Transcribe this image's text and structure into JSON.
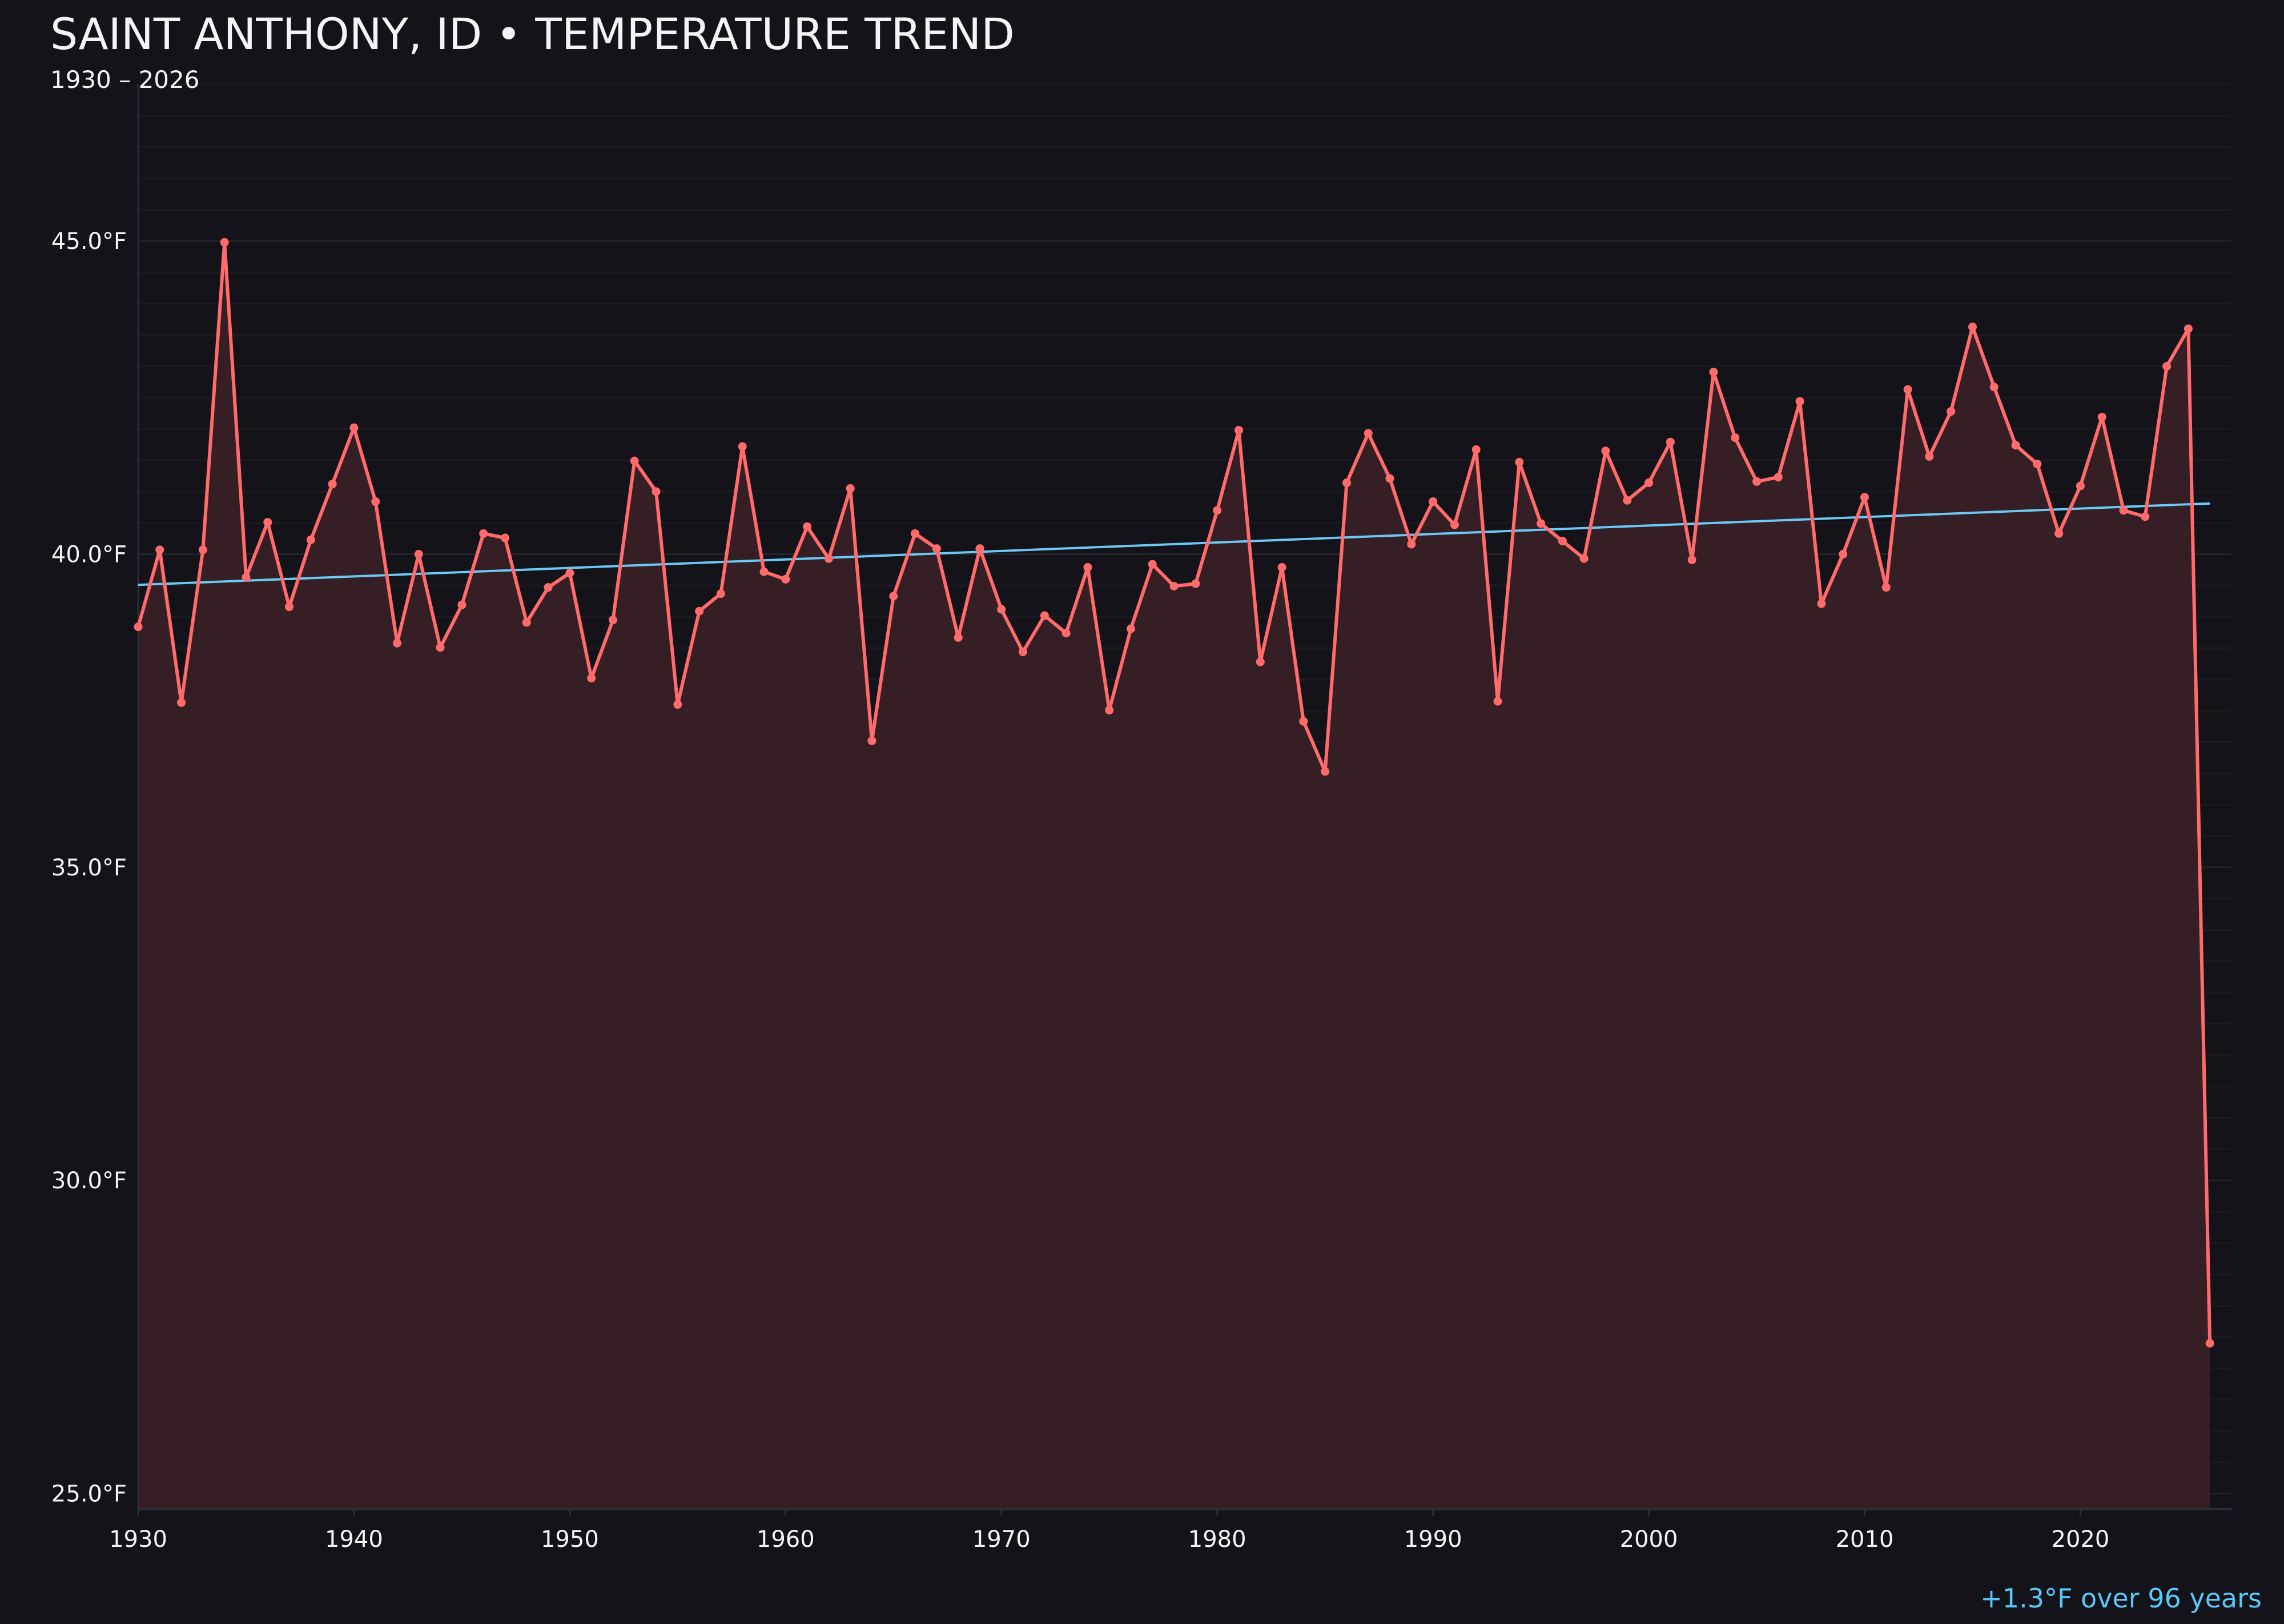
{
  "chart_data": {
    "type": "line",
    "title": "SAINT ANTHONY, ID • TEMPERATURE TREND",
    "subtitle": "1930 – 2026",
    "xlabel": "",
    "ylabel": "",
    "xlim": [
      1930,
      2027
    ],
    "ylim": [
      24.75,
      47.5
    ],
    "grid": true,
    "x_ticks": [
      "1930",
      "1940",
      "1950",
      "1960",
      "1970",
      "1980",
      "1990",
      "2000",
      "2010",
      "2020"
    ],
    "y_ticks": [
      "25.0°F",
      "30.0°F",
      "35.0°F",
      "40.0°F",
      "45.0°F"
    ],
    "x": [
      1930,
      1931,
      1932,
      1933,
      1934,
      1935,
      1936,
      1937,
      1938,
      1939,
      1940,
      1941,
      1942,
      1943,
      1944,
      1945,
      1946,
      1947,
      1948,
      1949,
      1950,
      1951,
      1952,
      1953,
      1954,
      1955,
      1956,
      1957,
      1958,
      1959,
      1960,
      1961,
      1962,
      1963,
      1964,
      1965,
      1966,
      1967,
      1968,
      1969,
      1970,
      1971,
      1972,
      1973,
      1974,
      1975,
      1976,
      1977,
      1978,
      1979,
      1980,
      1981,
      1982,
      1983,
      1984,
      1985,
      1986,
      1987,
      1988,
      1989,
      1990,
      1991,
      1992,
      1993,
      1994,
      1995,
      1996,
      1997,
      1998,
      1999,
      2000,
      2001,
      2002,
      2003,
      2004,
      2005,
      2006,
      2007,
      2008,
      2009,
      2010,
      2011,
      2012,
      2013,
      2014,
      2015,
      2016,
      2017,
      2018,
      2019,
      2020,
      2021,
      2022,
      2023,
      2024,
      2025,
      2026
    ],
    "series": [
      {
        "values": [
          38.84,
          40.07,
          37.63,
          40.07,
          44.98,
          39.63,
          40.51,
          39.16,
          40.23,
          41.12,
          42.02,
          40.84,
          38.58,
          40.0,
          38.51,
          39.19,
          40.33,
          40.26,
          38.91,
          39.47,
          39.7,
          38.02,
          38.95,
          41.49,
          41.0,
          37.6,
          39.09,
          39.37,
          41.72,
          39.72,
          39.6,
          40.44,
          39.93,
          41.05,
          37.02,
          39.33,
          40.33,
          40.09,
          38.67,
          40.09,
          39.12,
          38.44,
          39.02,
          38.74,
          39.79,
          37.51,
          38.81,
          39.84,
          39.49,
          39.53,
          40.7,
          41.98,
          38.28,
          39.79,
          37.33,
          36.53,
          41.14,
          41.93,
          41.21,
          40.16,
          40.84,
          40.47,
          41.67,
          37.65,
          41.47,
          40.49,
          40.21,
          39.93,
          41.65,
          40.86,
          41.14,
          41.79,
          39.91,
          42.91,
          41.86,
          41.16,
          41.23,
          42.44,
          39.21,
          40.0,
          40.91,
          39.47,
          42.63,
          41.56,
          42.28,
          43.63,
          42.67,
          41.74,
          41.44,
          40.33,
          41.09,
          42.19,
          40.7,
          40.6,
          43.0,
          43.6,
          27.4
        ]
      }
    ],
    "trend": {
      "x": [
        1930,
        2026
      ],
      "y": [
        39.51,
        40.81
      ]
    },
    "annotation": "+1.3°F over 96 years",
    "colors": {
      "background": "#131319",
      "line": "#ff6b6b",
      "fill": "#351f25",
      "trend": "#6cc8f5",
      "annotation": "#5ac8fa",
      "text": "#f4f4f8"
    }
  }
}
